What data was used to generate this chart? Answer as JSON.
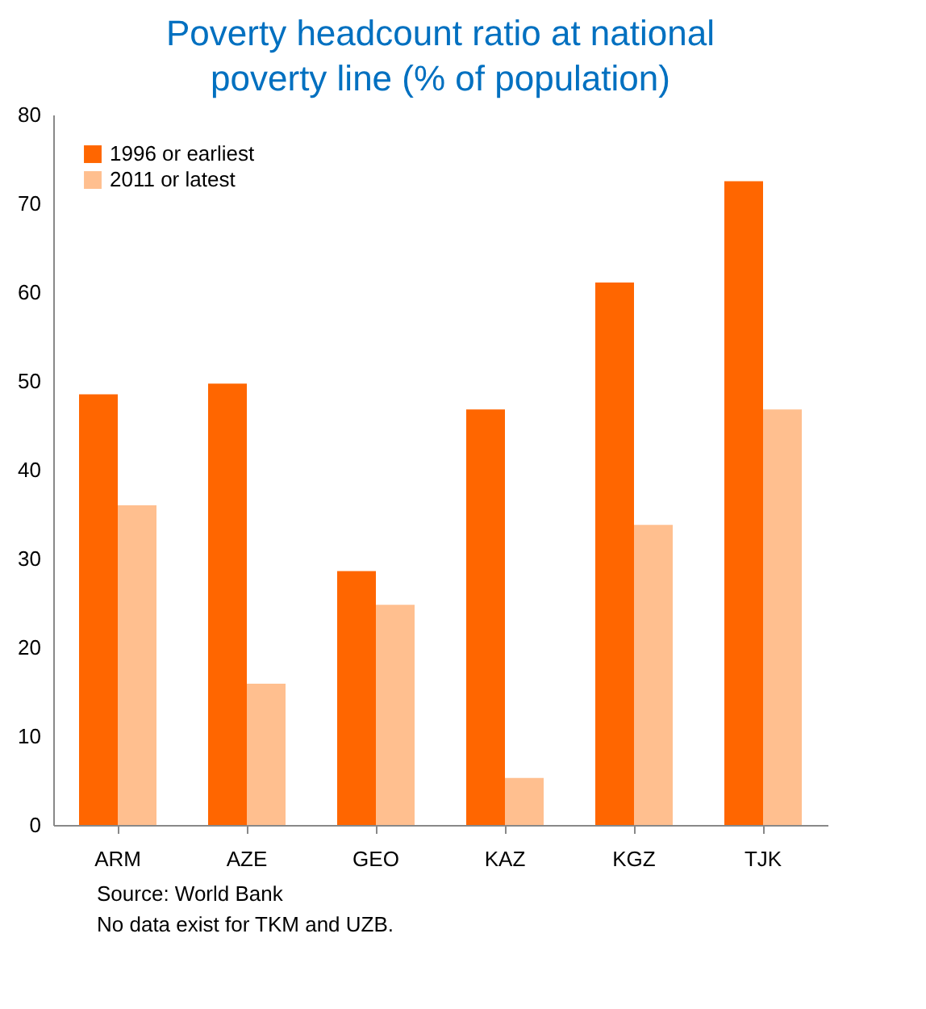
{
  "chart_data": {
    "type": "bar",
    "title": "Poverty headcount ratio at national poverty line (% of population)",
    "categories": [
      "ARM",
      "AZE",
      "GEO",
      "KAZ",
      "KGZ",
      "TJK"
    ],
    "series": [
      {
        "name": "1996 or earliest",
        "color": "#ff6600",
        "values": [
          48.5,
          49.7,
          28.6,
          46.8,
          61.1,
          72.5
        ]
      },
      {
        "name": "2011 or latest",
        "color": "#ffbf8f",
        "values": [
          36.0,
          15.9,
          24.8,
          5.3,
          33.8,
          46.8
        ]
      }
    ],
    "ylim": [
      0,
      80
    ],
    "yticks": [
      0,
      10,
      20,
      30,
      40,
      50,
      60,
      70,
      80
    ],
    "grid": false,
    "legend": "top left",
    "annotations": [
      "Source:  World Bank",
      "No data exist for TKM and UZB."
    ]
  }
}
